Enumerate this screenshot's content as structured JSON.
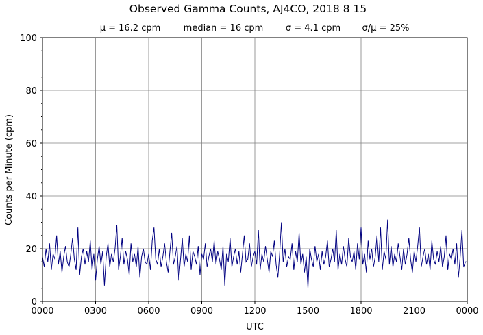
{
  "chart_data": {
    "type": "line",
    "title": "Observed Gamma Counts, AJ4CO, 2018 8 15",
    "subtitle": {
      "mean": "μ = 16.2 cpm",
      "median": "median = 16 cpm",
      "sigma": "σ = 4.1 cpm",
      "cv": "σ/μ = 25%"
    },
    "xlabel": "UTC",
    "ylabel": "Counts per Minute (cpm)",
    "xlim_minutes": [
      0,
      1440
    ],
    "ylim": [
      0,
      100
    ],
    "x_ticks": [
      {
        "minute": 0,
        "label": "0000"
      },
      {
        "minute": 180,
        "label": "0300"
      },
      {
        "minute": 360,
        "label": "0600"
      },
      {
        "minute": 540,
        "label": "0900"
      },
      {
        "minute": 720,
        "label": "1200"
      },
      {
        "minute": 900,
        "label": "1500"
      },
      {
        "minute": 1080,
        "label": "1800"
      },
      {
        "minute": 1260,
        "label": "2100"
      },
      {
        "minute": 1440,
        "label": "0000"
      }
    ],
    "y_ticks": [
      {
        "value": 0,
        "label": "0"
      },
      {
        "value": 20,
        "label": "20"
      },
      {
        "value": 40,
        "label": "40"
      },
      {
        "value": 60,
        "label": "60"
      },
      {
        "value": 80,
        "label": "80"
      },
      {
        "value": 100,
        "label": "100"
      }
    ],
    "grid": true,
    "line_color": "#000080",
    "grid_color": "#808080",
    "sample_interval_minutes": 6,
    "values": [
      17,
      13,
      20,
      15,
      22,
      12,
      18,
      16,
      25,
      14,
      19,
      11,
      17,
      21,
      15,
      13,
      18,
      24,
      16,
      12,
      28,
      10,
      17,
      20,
      14,
      19,
      15,
      23,
      12,
      18,
      8,
      16,
      21,
      14,
      19,
      6,
      17,
      22,
      13,
      18,
      15,
      20,
      29,
      12,
      17,
      24,
      14,
      19,
      16,
      10,
      22,
      15,
      18,
      13,
      21,
      9,
      17,
      20,
      15,
      14,
      18,
      12,
      23,
      28,
      16,
      14,
      20,
      13,
      17,
      22,
      15,
      11,
      19,
      26,
      14,
      17,
      21,
      8,
      16,
      24,
      13,
      18,
      15,
      25,
      12,
      19,
      17,
      14,
      21,
      10,
      18,
      16,
      22,
      13,
      17,
      20,
      15,
      23,
      14,
      19,
      16,
      12,
      21,
      6,
      18,
      15,
      24,
      13,
      17,
      20,
      14,
      19,
      11,
      18,
      25,
      15,
      16,
      22,
      13,
      17,
      19,
      14,
      27,
      12,
      18,
      15,
      21,
      16,
      11,
      19,
      17,
      23,
      14,
      9,
      18,
      30,
      15,
      20,
      13,
      17,
      16,
      22,
      12,
      19,
      15,
      26,
      14,
      18,
      11,
      17,
      5,
      20,
      16,
      13,
      21,
      15,
      18,
      12,
      19,
      14,
      17,
      23,
      13,
      16,
      20,
      15,
      27,
      12,
      18,
      14,
      21,
      16,
      13,
      24,
      17,
      15,
      19,
      12,
      22,
      16,
      28,
      14,
      18,
      11,
      23,
      16,
      20,
      13,
      17,
      25,
      15,
      28,
      12,
      19,
      16,
      31,
      14,
      21,
      13,
      18,
      15,
      22,
      17,
      12,
      20,
      14,
      18,
      24,
      16,
      11,
      19,
      15,
      21,
      28,
      13,
      17,
      20,
      14,
      18,
      12,
      23,
      16,
      14,
      19,
      15,
      21,
      13,
      17,
      25,
      12,
      18,
      16,
      20,
      14,
      22,
      9,
      17,
      27,
      13,
      15
    ]
  }
}
